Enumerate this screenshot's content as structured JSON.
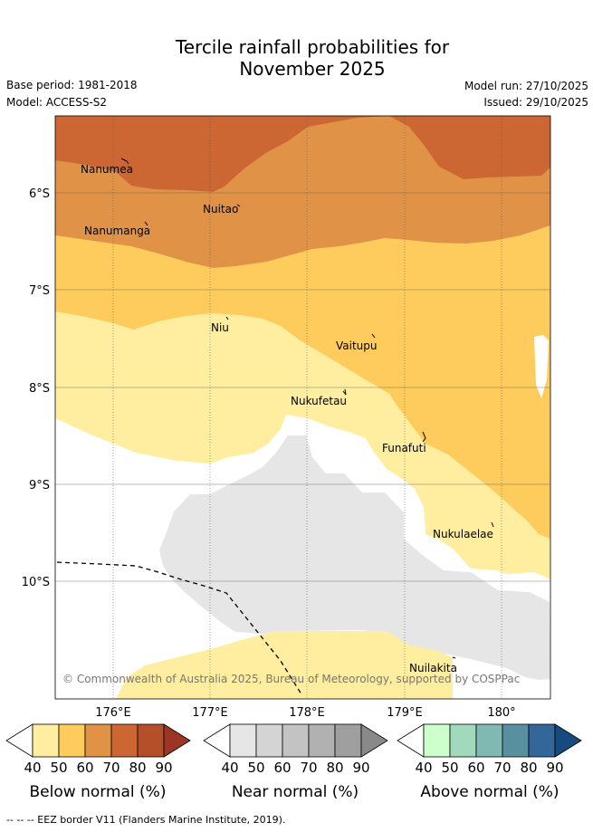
{
  "header": {
    "title_line1": "Tercile rainfall probabilities for",
    "title_line2": "November 2025",
    "base_period": "Base period: 1981-2018",
    "model": "Model: ACCESS-S2",
    "model_run": "Model run: 27/10/2025",
    "issued": "Issued: 29/10/2025"
  },
  "map": {
    "lat_labels": [
      "6°S",
      "7°S",
      "8°S",
      "9°S",
      "10°S"
    ],
    "lon_labels": [
      "176°E",
      "177°E",
      "178°E",
      "179°E",
      "180°"
    ],
    "places": [
      "Nanumea",
      "Nuitao",
      "Nanumanga",
      "Niu",
      "Vaitupu",
      "Nukufetau",
      "Funafuti",
      "Nukulaelae",
      "Nuilakita"
    ],
    "copyright": "© Commonwealth of Australia 2025, Bureau of Meteorology, supported by COSPPac"
  },
  "legend": {
    "ticks": [
      "40",
      "50",
      "60",
      "70",
      "80",
      "90"
    ],
    "below_title": "Below normal (%)",
    "near_title": "Near normal (%)",
    "above_title": "Above normal (%)",
    "below_colors": [
      "#ffffff",
      "#ffeda0",
      "#fecc5c",
      "#e09346",
      "#cc6633",
      "#b44f2a",
      "#9b3525"
    ],
    "near_colors": [
      "#ffffff",
      "#e6e6e6",
      "#d4d4d4",
      "#c3c3c3",
      "#b1b1b1",
      "#9f9f9f",
      "#898989"
    ],
    "above_colors": [
      "#ffffff",
      "#ccffcc",
      "#a1d9bd",
      "#80b8b2",
      "#5990a0",
      "#336699",
      "#174a7e"
    ]
  },
  "footer": {
    "eez_note": "-- -- -- EEZ border V11 (Flanders Marine Institute, 2019)."
  }
}
